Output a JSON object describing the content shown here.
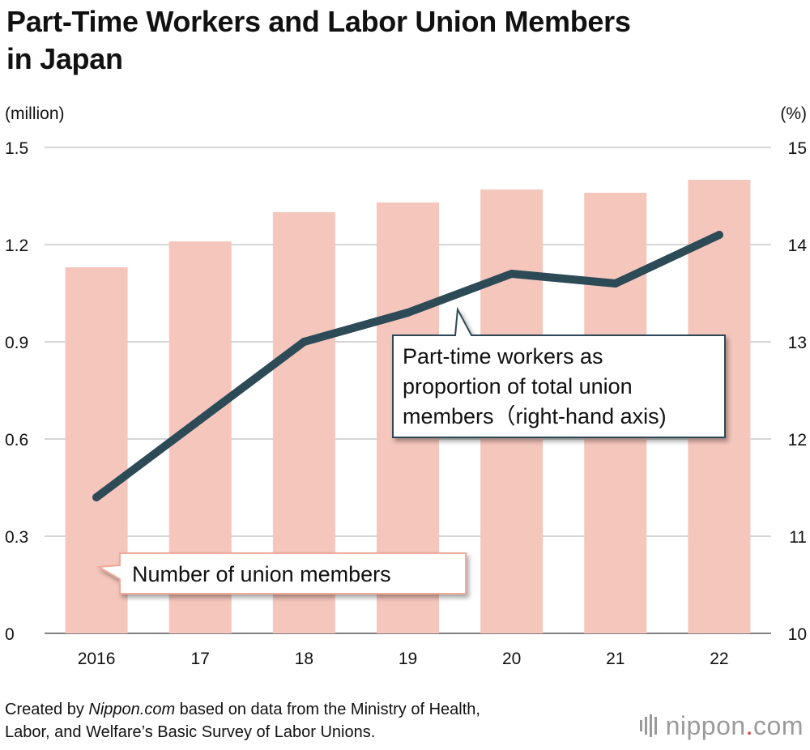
{
  "title_line1": "Part-Time Workers and Labor Union Members",
  "title_line2": "in Japan",
  "footer": {
    "prefix": "Created by ",
    "source_name": "Nippon.com",
    "middle": " based on data from the Ministry of Health,",
    "line2": "Labor, and Welfare’s Basic Survey of Labor Unions."
  },
  "logo": {
    "name": "nippon",
    "dot": ".",
    "suffix": "com"
  },
  "colors": {
    "bar": "#f5c6bc",
    "line": "#2d4a57",
    "grid": "#c8c8c8",
    "logo": "#9a9a9a",
    "logo_dot": "#e0322c"
  },
  "chart_data": {
    "type": "bar",
    "categories": [
      "2016",
      "17",
      "18",
      "19",
      "20",
      "21",
      "22"
    ],
    "left_axis": {
      "unit": "(million)",
      "min": 0,
      "max": 1.5,
      "ticks": [
        "0",
        "0.3",
        "0.6",
        "0.9",
        "1.2",
        "1.5"
      ]
    },
    "right_axis": {
      "unit": "(%)",
      "min": 10,
      "max": 15,
      "ticks": [
        "10",
        "11",
        "12",
        "13",
        "14",
        "15"
      ]
    },
    "grid": true,
    "series": [
      {
        "name": "Number of union members",
        "kind": "bar",
        "axis": "left",
        "values": [
          1.13,
          1.21,
          1.3,
          1.33,
          1.37,
          1.36,
          1.4
        ]
      },
      {
        "name": "Part-time workers as proportion of total union members(right-hand axis)",
        "kind": "line",
        "axis": "right",
        "label_lines": [
          "Part-time workers as",
          "proportion of total union",
          "members（right-hand axis)"
        ],
        "values": [
          11.4,
          12.2,
          13.0,
          13.3,
          13.7,
          13.6,
          14.1
        ]
      }
    ]
  }
}
